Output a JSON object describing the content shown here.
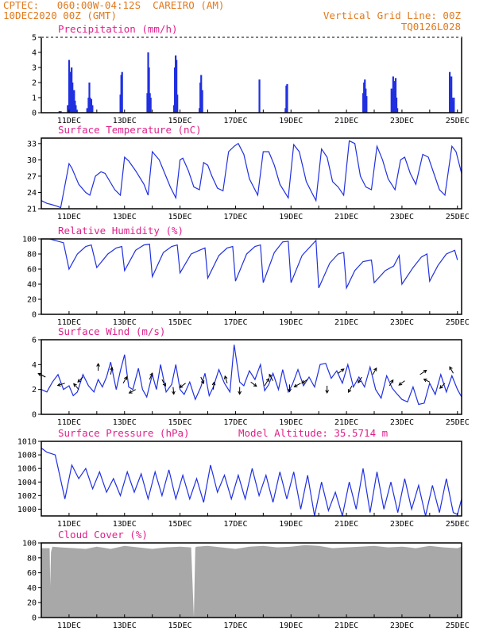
{
  "header": {
    "line1": "CPTEC:   060:00W-04:12S  CAREIRO (AM)",
    "line2": "10DEC2020 00Z (GMT)",
    "grid_note": "Vertical Grid Line: 00Z",
    "code": "TQ0126L028"
  },
  "colors": {
    "header": "#e07a1e",
    "title": "#e0208a",
    "series": "#2030e0",
    "cloud": "#a8a8a8"
  },
  "x_ticks": [
    "11DEC",
    "13DEC",
    "15DEC",
    "17DEC",
    "19DEC",
    "21DEC",
    "23DEC",
    "25DEC"
  ],
  "chart_data": [
    {
      "id": "precip",
      "type": "bar",
      "title": "Precipitation (mm/h)",
      "x_unit": "day of December 2020 (00Z)",
      "ylim": [
        0,
        5
      ],
      "yticks": [
        0,
        1,
        2,
        3,
        4,
        5
      ],
      "x": [
        10.65,
        10.7,
        10.95,
        11.0,
        11.03,
        11.06,
        11.09,
        11.12,
        11.15,
        11.18,
        11.21,
        11.24,
        11.28,
        11.65,
        11.7,
        11.73,
        11.76,
        11.8,
        11.84,
        12.85,
        12.88,
        12.91,
        13.82,
        13.85,
        13.88,
        13.91,
        13.94,
        14.78,
        14.81,
        14.84,
        14.87,
        14.9,
        15.7,
        15.73,
        15.76,
        15.8,
        17.86,
        18.8,
        18.83,
        18.86,
        21.6,
        21.63,
        21.66,
        21.69,
        21.72,
        22.62,
        22.65,
        22.68,
        22.71,
        22.74,
        22.77,
        22.8,
        22.83,
        24.72,
        24.75,
        24.78,
        24.81,
        24.84,
        24.87
      ],
      "values": [
        0.1,
        0.1,
        0.5,
        3.5,
        2.7,
        2.7,
        3.0,
        2.0,
        1.5,
        1.5,
        0.8,
        0.5,
        0.2,
        0.3,
        1.0,
        2.0,
        1.0,
        0.9,
        0.5,
        1.2,
        2.5,
        2.7,
        1.3,
        4.0,
        3.0,
        1.3,
        1.0,
        0.5,
        3.0,
        3.8,
        3.5,
        1.2,
        0.3,
        2.0,
        2.5,
        1.5,
        2.2,
        0.3,
        1.8,
        1.9,
        1.3,
        2.0,
        2.2,
        1.6,
        1.1,
        1.6,
        1.4,
        2.4,
        2.1,
        1.5,
        2.3,
        1.0,
        0.3,
        2.7,
        1.6,
        2.4,
        1.0,
        0.8,
        1.0
      ]
    },
    {
      "id": "temp",
      "type": "line",
      "title": "Surface Temperature (nC)",
      "ylim": [
        21,
        34
      ],
      "yticks": [
        21,
        24,
        27,
        30,
        33
      ],
      "x": [
        10.0,
        10.2,
        10.35,
        10.55,
        10.7,
        11.0,
        11.1,
        11.35,
        11.6,
        11.75,
        11.95,
        12.15,
        12.3,
        12.65,
        12.85,
        13.0,
        13.15,
        13.4,
        13.7,
        13.85,
        14.0,
        14.25,
        14.45,
        14.65,
        14.85,
        15.0,
        15.1,
        15.3,
        15.5,
        15.7,
        15.85,
        16.0,
        16.15,
        16.35,
        16.55,
        16.75,
        16.95,
        17.1,
        17.3,
        17.5,
        17.8,
        18.0,
        18.2,
        18.4,
        18.6,
        18.9,
        19.1,
        19.3,
        19.55,
        19.75,
        19.9,
        20.1,
        20.3,
        20.5,
        20.7,
        20.9,
        21.1,
        21.3,
        21.5,
        21.7,
        21.9,
        22.1,
        22.3,
        22.5,
        22.75,
        22.95,
        23.1,
        23.3,
        23.5,
        23.75,
        23.95,
        24.15,
        24.35,
        24.55,
        24.8,
        24.95,
        25.15
      ],
      "values": [
        22.5,
        22.0,
        21.8,
        21.5,
        21.2,
        29.3,
        28.5,
        25.5,
        24.0,
        23.5,
        27.0,
        27.8,
        27.5,
        24.5,
        23.5,
        30.5,
        29.8,
        28.0,
        25.5,
        23.5,
        31.5,
        30.0,
        27.5,
        25.0,
        23.0,
        30.0,
        30.3,
        28.0,
        25.0,
        24.5,
        29.5,
        29.0,
        27.0,
        24.8,
        24.3,
        31.5,
        32.5,
        33.0,
        31.0,
        26.5,
        23.5,
        31.5,
        31.5,
        29.0,
        25.5,
        23.0,
        32.8,
        31.5,
        26.0,
        24.0,
        22.5,
        32.0,
        30.5,
        26.0,
        25.0,
        23.5,
        33.5,
        33.0,
        27.0,
        25.0,
        24.5,
        32.5,
        30.0,
        26.5,
        24.5,
        30.0,
        30.5,
        27.5,
        25.5,
        31.0,
        30.5,
        27.5,
        24.5,
        23.5,
        32.5,
        31.5,
        27.5
      ]
    },
    {
      "id": "rh",
      "type": "line",
      "title": "Relative Humidity (%)",
      "ylim": [
        0,
        100
      ],
      "yticks": [
        0,
        20,
        40,
        60,
        80,
        100
      ],
      "x": [
        10.0,
        10.3,
        10.6,
        10.8,
        11.0,
        11.3,
        11.6,
        11.8,
        12.0,
        12.4,
        12.7,
        12.9,
        13.0,
        13.4,
        13.7,
        13.9,
        14.0,
        14.4,
        14.7,
        14.9,
        15.0,
        15.4,
        15.7,
        15.9,
        16.0,
        16.4,
        16.7,
        16.9,
        17.0,
        17.4,
        17.7,
        17.9,
        18.0,
        18.4,
        18.7,
        18.9,
        19.0,
        19.4,
        19.7,
        19.9,
        20.0,
        20.4,
        20.7,
        20.9,
        21.0,
        21.3,
        21.6,
        21.9,
        22.0,
        22.4,
        22.7,
        22.9,
        23.0,
        23.4,
        23.7,
        23.9,
        24.0,
        24.3,
        24.6,
        24.9,
        25.0
      ],
      "values": [
        100,
        100,
        97,
        95,
        60,
        80,
        90,
        92,
        62,
        80,
        88,
        90,
        58,
        85,
        92,
        93,
        50,
        82,
        90,
        92,
        55,
        80,
        85,
        88,
        48,
        78,
        88,
        90,
        44,
        80,
        90,
        92,
        42,
        82,
        96,
        97,
        42,
        78,
        90,
        98,
        35,
        68,
        80,
        82,
        35,
        58,
        70,
        72,
        42,
        58,
        64,
        78,
        40,
        62,
        76,
        80,
        44,
        65,
        80,
        85,
        72
      ]
    },
    {
      "id": "wind",
      "type": "line",
      "title": "Surface Wind (m/s)",
      "ylim": [
        0,
        6
      ],
      "yticks": [
        0,
        2,
        4,
        6
      ],
      "x": [
        10.0,
        10.2,
        10.4,
        10.6,
        10.8,
        11.0,
        11.15,
        11.3,
        11.5,
        11.7,
        11.9,
        12.05,
        12.2,
        12.35,
        12.5,
        12.7,
        12.85,
        13.0,
        13.15,
        13.3,
        13.5,
        13.65,
        13.8,
        14.0,
        14.15,
        14.3,
        14.5,
        14.7,
        14.85,
        15.0,
        15.15,
        15.35,
        15.55,
        15.75,
        15.9,
        16.05,
        16.2,
        16.4,
        16.6,
        16.8,
        16.95,
        17.15,
        17.3,
        17.5,
        17.7,
        17.9,
        18.05,
        18.2,
        18.35,
        18.55,
        18.7,
        18.9,
        19.05,
        19.25,
        19.45,
        19.65,
        19.85,
        20.05,
        20.25,
        20.45,
        20.65,
        20.85,
        21.05,
        21.25,
        21.45,
        21.65,
        21.85,
        22.05,
        22.25,
        22.45,
        22.65,
        22.8,
        23.0,
        23.2,
        23.4,
        23.6,
        23.8,
        24.0,
        24.2,
        24.4,
        24.6,
        24.8,
        25.0,
        25.15
      ],
      "values": [
        2.0,
        1.8,
        2.6,
        3.2,
        2.0,
        2.3,
        1.5,
        1.8,
        3.2,
        2.3,
        1.8,
        2.8,
        2.2,
        3.0,
        4.2,
        2.0,
        3.5,
        4.8,
        2.2,
        2.0,
        3.7,
        2.0,
        1.4,
        3.2,
        2.0,
        4.0,
        1.8,
        2.4,
        4.0,
        2.0,
        1.6,
        2.6,
        1.2,
        2.2,
        3.3,
        1.5,
        2.2,
        3.6,
        2.5,
        1.8,
        5.6,
        2.6,
        2.3,
        3.5,
        2.8,
        4.0,
        1.9,
        2.4,
        3.3,
        2.0,
        3.6,
        1.8,
        2.4,
        3.6,
        2.3,
        3.0,
        2.2,
        4.0,
        4.1,
        2.9,
        3.5,
        2.5,
        4.0,
        2.2,
        3.0,
        2.2,
        3.8,
        2.0,
        1.3,
        3.1,
        2.1,
        1.7,
        1.2,
        1.0,
        2.2,
        0.8,
        0.9,
        2.5,
        1.6,
        3.2,
        1.8,
        3.1,
        2.0,
        1.4
      ],
      "arrows": [
        {
          "x": 10.15,
          "y": 3.0,
          "dx": -1,
          "dy": 0.5
        },
        {
          "x": 10.85,
          "y": 2.5,
          "dx": -1,
          "dy": -0.3
        },
        {
          "x": 11.35,
          "y": 2.0,
          "dx": -0.7,
          "dy": 0.8
        },
        {
          "x": 11.5,
          "y": 3.0,
          "dx": -0.7,
          "dy": -0.7
        },
        {
          "x": 12.05,
          "y": 3.5,
          "dx": 0,
          "dy": 1
        },
        {
          "x": 12.5,
          "y": 3.2,
          "dx": 0.2,
          "dy": 1
        },
        {
          "x": 12.95,
          "y": 2.5,
          "dx": 0.5,
          "dy": 0.9
        },
        {
          "x": 13.4,
          "y": 2.0,
          "dx": -0.9,
          "dy": -0.5
        },
        {
          "x": 13.9,
          "y": 2.8,
          "dx": 0.4,
          "dy": 0.9
        },
        {
          "x": 14.35,
          "y": 2.8,
          "dx": 0.5,
          "dy": -0.9
        },
        {
          "x": 14.75,
          "y": 2.2,
          "dx": 0.1,
          "dy": -1
        },
        {
          "x": 15.2,
          "y": 2.5,
          "dx": -0.8,
          "dy": -0.6
        },
        {
          "x": 15.75,
          "y": 3.0,
          "dx": 0.4,
          "dy": -0.9
        },
        {
          "x": 16.2,
          "y": 2.0,
          "dx": 0.1,
          "dy": 1
        },
        {
          "x": 16.7,
          "y": 2.5,
          "dx": -0.3,
          "dy": 1
        },
        {
          "x": 17.15,
          "y": 2.2,
          "dx": 0,
          "dy": -1
        },
        {
          "x": 17.55,
          "y": 2.6,
          "dx": 0.8,
          "dy": -0.6
        },
        {
          "x": 18.05,
          "y": 2.3,
          "dx": 0.6,
          "dy": 1
        },
        {
          "x": 18.35,
          "y": 2.7,
          "dx": -0.5,
          "dy": 0.9
        },
        {
          "x": 18.95,
          "y": 2.4,
          "dx": 0,
          "dy": -1
        },
        {
          "x": 19.35,
          "y": 2.5,
          "dx": -0.9,
          "dy": -0.5
        },
        {
          "x": 19.6,
          "y": 2.8,
          "dx": -0.8,
          "dy": -0.5
        },
        {
          "x": 20.3,
          "y": 2.3,
          "dx": 0,
          "dy": -1
        },
        {
          "x": 20.7,
          "y": 3.3,
          "dx": 0.8,
          "dy": 0.6
        },
        {
          "x": 21.2,
          "y": 2.3,
          "dx": -0.5,
          "dy": -0.9
        },
        {
          "x": 21.55,
          "y": 3.0,
          "dx": -0.5,
          "dy": -0.8
        },
        {
          "x": 21.95,
          "y": 3.2,
          "dx": 0.5,
          "dy": 0.9
        },
        {
          "x": 22.55,
          "y": 2.3,
          "dx": 0.5,
          "dy": 0.8
        },
        {
          "x": 23.1,
          "y": 2.7,
          "dx": -0.8,
          "dy": -0.6
        },
        {
          "x": 23.65,
          "y": 3.2,
          "dx": 0.9,
          "dy": 0.6
        },
        {
          "x": 24.0,
          "y": 2.6,
          "dx": -0.8,
          "dy": 0.4
        },
        {
          "x": 24.55,
          "y": 2.5,
          "dx": -0.7,
          "dy": -0.7
        },
        {
          "x": 24.85,
          "y": 3.3,
          "dx": -0.5,
          "dy": 0.9
        }
      ]
    },
    {
      "id": "pressure",
      "type": "line",
      "title": "Surface Pressure (hPa)",
      "note": "Model Altitude: 35.5714 m",
      "ylim": [
        999,
        1010
      ],
      "yticks": [
        1000,
        1002,
        1004,
        1006,
        1008,
        1010
      ],
      "x": [
        10.0,
        10.2,
        10.5,
        10.85,
        11.1,
        11.35,
        11.6,
        11.85,
        12.1,
        12.35,
        12.6,
        12.85,
        13.1,
        13.35,
        13.6,
        13.85,
        14.1,
        14.35,
        14.6,
        14.85,
        15.1,
        15.35,
        15.6,
        15.85,
        16.1,
        16.35,
        16.6,
        16.85,
        17.1,
        17.35,
        17.6,
        17.85,
        18.1,
        18.35,
        18.6,
        18.85,
        19.1,
        19.35,
        19.6,
        19.85,
        20.1,
        20.35,
        20.6,
        20.85,
        21.1,
        21.35,
        21.6,
        21.85,
        22.1,
        22.35,
        22.6,
        22.85,
        23.1,
        23.35,
        23.6,
        23.85,
        24.1,
        24.35,
        24.6,
        24.85,
        25.0,
        25.15
      ],
      "values": [
        1009.0,
        1008.4,
        1008.0,
        1001.5,
        1006.5,
        1004.5,
        1006.0,
        1003.0,
        1005.5,
        1002.5,
        1004.5,
        1002.0,
        1005.5,
        1002.5,
        1005.2,
        1001.5,
        1005.5,
        1002.0,
        1005.8,
        1001.5,
        1005.0,
        1001.5,
        1004.5,
        1001.0,
        1006.5,
        1002.5,
        1005.0,
        1001.5,
        1005.0,
        1001.5,
        1006.0,
        1002.0,
        1005.0,
        1001.0,
        1005.5,
        1001.5,
        1005.5,
        1000.0,
        1005.0,
        999.0,
        1004.0,
        999.8,
        1002.5,
        999.0,
        1004.0,
        1000.0,
        1006.0,
        999.5,
        1005.5,
        1000.0,
        1004.0,
        999.5,
        1004.5,
        1000.0,
        1003.5,
        999.0,
        1003.5,
        999.5,
        1004.5,
        999.5,
        999.2,
        1001.5
      ]
    },
    {
      "id": "cloud",
      "type": "area",
      "title": "Cloud Cover (%)",
      "ylim": [
        0,
        100
      ],
      "yticks": [
        0,
        20,
        40,
        60,
        80,
        100
      ],
      "x": [
        10.0,
        10.3,
        10.32,
        10.35,
        10.4,
        10.7,
        11.2,
        11.6,
        12.0,
        12.5,
        13.0,
        13.5,
        14.0,
        14.5,
        15.0,
        15.4,
        15.5,
        15.55,
        15.6,
        16.0,
        16.5,
        17.0,
        17.5,
        18.0,
        18.5,
        19.0,
        19.5,
        20.0,
        20.5,
        21.0,
        21.5,
        22.0,
        22.5,
        23.0,
        23.5,
        24.0,
        24.5,
        25.0,
        25.15
      ],
      "values": [
        93,
        93,
        42,
        88,
        95,
        94,
        93,
        92,
        95,
        92,
        96,
        94,
        92,
        94,
        95,
        94,
        0,
        94,
        95,
        96,
        94,
        92,
        95,
        96,
        94,
        95,
        97,
        96,
        93,
        94,
        95,
        96,
        94,
        95,
        93,
        96,
        94,
        93,
        95
      ]
    }
  ]
}
